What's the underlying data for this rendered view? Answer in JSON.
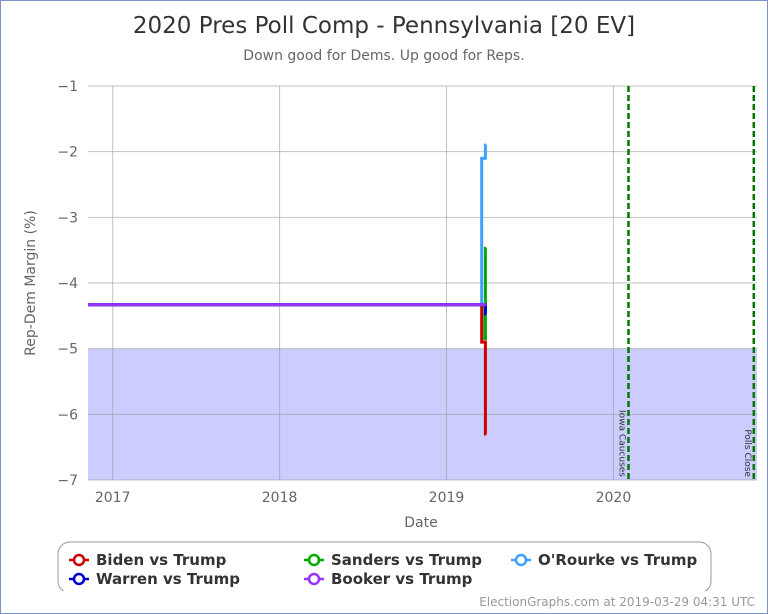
{
  "chart_data": {
    "type": "line",
    "title": "2020 Pres Poll Comp - Pennsylvania [20 EV]",
    "subtitle": "Down good for Dems. Up good for Reps.",
    "xlabel": "Date",
    "ylabel": "Rep-Dem Margin (%)",
    "xlim": [
      "2016-11-08",
      "2020-11-10"
    ],
    "ylim": [
      -7,
      -1
    ],
    "x_ticks": [
      {
        "date": "2017-01-01",
        "label": "2017"
      },
      {
        "date": "2018-01-01",
        "label": "2018"
      },
      {
        "date": "2019-01-01",
        "label": "2019"
      },
      {
        "date": "2020-01-01",
        "label": "2020"
      }
    ],
    "y_ticks": [
      -1,
      -2,
      -3,
      -4,
      -5,
      -6,
      -7
    ],
    "grid": true,
    "shaded_band": {
      "from": -7,
      "to": -5,
      "color": "#ccccff"
    },
    "events": [
      {
        "date": "2020-02-03",
        "label": "Iowa Caucuses"
      },
      {
        "date": "2020-11-03",
        "label": "Polls Close"
      }
    ],
    "series": [
      {
        "name": "Biden vs Trump",
        "color": "#cc0000",
        "points": [
          [
            "2016-11-08",
            -4.33
          ],
          [
            "2019-03-19",
            -4.33
          ],
          [
            "2019-03-19",
            -4.9
          ],
          [
            "2019-03-27",
            -4.9
          ],
          [
            "2019-03-27",
            -6.3
          ],
          [
            "2019-03-29",
            -6.3
          ]
        ]
      },
      {
        "name": "Sanders vs Trump",
        "color": "#00aa00",
        "points": [
          [
            "2016-11-08",
            -4.33
          ],
          [
            "2019-03-26",
            -4.33
          ],
          [
            "2019-03-26",
            -4.85
          ],
          [
            "2019-03-27",
            -4.85
          ],
          [
            "2019-03-27",
            -3.47
          ],
          [
            "2019-03-29",
            -3.47
          ]
        ]
      },
      {
        "name": "O'Rourke vs Trump",
        "color": "#3fa0ff",
        "points": [
          [
            "2016-11-08",
            -4.33
          ],
          [
            "2019-03-19",
            -4.33
          ],
          [
            "2019-03-19",
            -2.1
          ],
          [
            "2019-03-27",
            -2.1
          ],
          [
            "2019-03-27",
            -1.9
          ],
          [
            "2019-03-29",
            -1.9
          ]
        ]
      },
      {
        "name": "Warren vs Trump",
        "color": "#0000cc",
        "points": [
          [
            "2016-11-08",
            -4.33
          ],
          [
            "2019-03-27",
            -4.33
          ],
          [
            "2019-03-27",
            -4.47
          ],
          [
            "2019-03-29",
            -4.47
          ]
        ]
      },
      {
        "name": "Booker vs Trump",
        "color": "#9933ff",
        "points": [
          [
            "2016-11-08",
            -4.33
          ],
          [
            "2019-03-29",
            -4.33
          ]
        ]
      }
    ],
    "legend_order": [
      "Biden vs Trump",
      "Sanders vs Trump",
      "O'Rourke vs Trump",
      "Warren vs Trump",
      "Booker vs Trump"
    ],
    "legend_placement": "bottom"
  },
  "footer": "ElectionGraphs.com at 2019-03-29 04:31 UTC"
}
